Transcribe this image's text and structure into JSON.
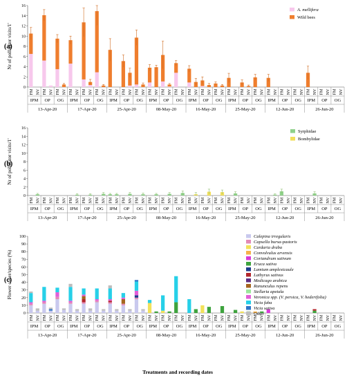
{
  "figure": {
    "xlabel": "Treatments and recording dates"
  },
  "chart_data": [
    {
      "panel": "(a)",
      "type": "bar",
      "stacked": true,
      "ylabel": "Nr of pollinator visits/1'",
      "ylim": [
        0,
        16
      ],
      "yticks": [
        0,
        2,
        4,
        6,
        8,
        10,
        12,
        14,
        16
      ],
      "legend_position": "top-right",
      "series": [
        {
          "name": "A. mellifera",
          "italic": true,
          "color": "#f7c8ec",
          "values": [
            6.5,
            0,
            5.2,
            0.3,
            3.5,
            0,
            4.6,
            0,
            1.5,
            0.4,
            2.9,
            0,
            0,
            0,
            0,
            0.3,
            0.5,
            0,
            0.9,
            0,
            1.1,
            0.1,
            2.8,
            0,
            0.9,
            0,
            0.2,
            0,
            0,
            0,
            0,
            0,
            0,
            0,
            0,
            0,
            0,
            0,
            0,
            0,
            0,
            0,
            0,
            0,
            0,
            0,
            0,
            0
          ]
        },
        {
          "name": "Wild bees",
          "italic": false,
          "color": "#ef7e2e",
          "values": [
            4,
            0,
            8.9,
            0,
            6,
            0.5,
            4.6,
            0,
            11.2,
            0.6,
            12,
            0.3,
            7.3,
            0,
            5.1,
            2.5,
            9.2,
            0.5,
            2.9,
            3.9,
            5.2,
            0.4,
            1.9,
            0,
            2.7,
            1,
            1.1,
            0.4,
            0.7,
            0.3,
            1.8,
            0,
            0.9,
            0.2,
            1.9,
            0,
            1.8,
            0,
            0,
            0,
            0,
            0,
            2.8,
            0,
            0,
            0,
            0,
            0
          ]
        }
      ],
      "errors": [
        1.2,
        0,
        1.1,
        0,
        0.8,
        0.2,
        0.8,
        0,
        2.8,
        0.5,
        2.8,
        0.2,
        2.2,
        0,
        1.2,
        0.9,
        1.5,
        0.3,
        0.6,
        0.4,
        2.7,
        0.2,
        0.5,
        0,
        0.6,
        0.7,
        0.7,
        0.3,
        0.3,
        0.2,
        0.9,
        0,
        0.5,
        0.2,
        0.6,
        0,
        0.7,
        0,
        0,
        0,
        0,
        0,
        1.3,
        0,
        0,
        0,
        0,
        0
      ]
    },
    {
      "panel": "(b)",
      "type": "bar",
      "stacked": true,
      "ylabel": "Nr of pollinator visits/1'",
      "ylim": [
        0,
        16
      ],
      "yticks": [
        0,
        2,
        4,
        6,
        8,
        10,
        12,
        14,
        16
      ],
      "legend_position": "top-right",
      "series": [
        {
          "name": "Syrphidae",
          "italic": false,
          "color": "#8fd18b",
          "values": [
            0,
            0.3,
            0,
            0,
            0,
            0,
            0,
            0.2,
            0,
            0.2,
            0,
            0.4,
            0.3,
            0.3,
            0,
            0.4,
            0,
            0.3,
            0,
            0.3,
            0,
            0.4,
            0,
            0.6,
            0,
            0,
            0,
            0,
            0,
            0,
            0,
            0.5,
            0,
            0,
            0,
            0,
            0,
            0.2,
            1,
            0,
            0,
            0,
            0,
            0.5,
            0,
            0,
            0,
            0
          ]
        },
        {
          "name": "Bombylidae",
          "italic": false,
          "color": "#f2df5c",
          "values": [
            0,
            0,
            0,
            0,
            0,
            0,
            0,
            0,
            0,
            0,
            0,
            0,
            0,
            0,
            0,
            0,
            0,
            0,
            0,
            0,
            0,
            0,
            0,
            0,
            0,
            0.3,
            0,
            0.9,
            0,
            0.8,
            0,
            0,
            0,
            0,
            0,
            0,
            0,
            0,
            0,
            0,
            0,
            0,
            0,
            0,
            0,
            0,
            0,
            0
          ]
        }
      ],
      "errors": [
        0,
        0.2,
        0,
        0,
        0,
        0,
        0,
        0.2,
        0,
        0.2,
        0,
        0.3,
        0.2,
        0.2,
        0,
        0.3,
        0,
        0.3,
        0,
        0.2,
        0,
        0.3,
        0,
        0.5,
        0,
        0.4,
        0,
        0.6,
        0,
        0.5,
        0,
        0.4,
        0,
        0,
        0,
        0,
        0,
        0.2,
        0.5,
        0,
        0,
        0,
        0,
        0.4,
        0,
        0,
        0,
        0
      ]
    },
    {
      "panel": "(c)",
      "type": "bar",
      "stacked": true,
      "ylabel": "Flower cover/species (%)",
      "ylim": [
        0,
        100
      ],
      "yticks": [
        0,
        10,
        20,
        30,
        40,
        50,
        60,
        70,
        80,
        90,
        100
      ],
      "legend_position": "right",
      "series": [
        {
          "name": "Calepina irregularis",
          "italic": true,
          "color": "#c9c9ee",
          "values": [
            10,
            3,
            12,
            3,
            18,
            4,
            12,
            3,
            12,
            3,
            14,
            3,
            12,
            3,
            10,
            3,
            18,
            3,
            0,
            0,
            0,
            0,
            0,
            0,
            0,
            0,
            0,
            0,
            0,
            0,
            0,
            0,
            0,
            0,
            0,
            0,
            0,
            0,
            0,
            0,
            0,
            0,
            0,
            0,
            0,
            0,
            0,
            0
          ]
        },
        {
          "name": "Capsella bursa-pastoris",
          "italic": true,
          "color": "#e28ab7",
          "values": [
            2,
            0,
            2,
            0,
            3,
            0,
            2,
            0,
            2,
            0,
            2,
            0,
            2,
            0,
            2,
            0,
            2,
            0,
            0,
            0,
            0,
            0,
            0,
            0,
            0,
            0,
            0,
            0,
            0,
            0,
            0,
            0,
            0,
            0,
            0,
            0,
            0,
            0,
            0,
            0,
            0,
            0,
            0,
            0,
            0,
            0,
            0,
            0
          ]
        },
        {
          "name": "Cardaria draba",
          "italic": true,
          "color": "#f2e15a",
          "values": [
            0,
            0,
            0,
            0,
            0,
            0,
            0,
            0,
            0,
            0,
            0,
            0,
            0,
            0,
            0,
            0,
            0,
            0,
            13,
            0,
            3,
            0,
            0,
            0,
            0,
            0,
            10,
            0,
            0,
            0,
            0,
            0,
            2,
            0,
            0,
            0,
            0,
            0,
            0,
            0,
            0,
            0,
            0,
            0,
            0,
            0,
            0,
            0
          ]
        },
        {
          "name": "Convolvulus arvensis",
          "italic": true,
          "color": "#f6b24b",
          "values": [
            0,
            0,
            0,
            0,
            0,
            0,
            0,
            0,
            0,
            0,
            0,
            0,
            0,
            0,
            0,
            0,
            0,
            0,
            0,
            0,
            0,
            0,
            0,
            0,
            0,
            0,
            0,
            0,
            0,
            0,
            0,
            0,
            0,
            0,
            2,
            0,
            0,
            0,
            0,
            0,
            0,
            0,
            0,
            0,
            0,
            0,
            0,
            0
          ]
        },
        {
          "name": "Coriandrum sativum",
          "italic": true,
          "color": "#d83ad8",
          "values": [
            0,
            0,
            0,
            0,
            0,
            0,
            0,
            0,
            0,
            0,
            0,
            0,
            0,
            0,
            0,
            0,
            0,
            0,
            0,
            0,
            0,
            0,
            0,
            0,
            0,
            0,
            0,
            0,
            0,
            0,
            0,
            0,
            0,
            0,
            0,
            0,
            5,
            0,
            0,
            0,
            0,
            0,
            0,
            0,
            0,
            0,
            0,
            0
          ]
        },
        {
          "name": "Eruca sativa",
          "italic": true,
          "color": "#3ea33e",
          "values": [
            0,
            0,
            0,
            0,
            0,
            0,
            0,
            0,
            0,
            0,
            0,
            0,
            0,
            0,
            0,
            0,
            0,
            0,
            0,
            2,
            0,
            2,
            14,
            0,
            0,
            5,
            0,
            8,
            0,
            9,
            0,
            4,
            0,
            2,
            0,
            2,
            0,
            0,
            0,
            0,
            0,
            0,
            0,
            3,
            0,
            0,
            0,
            0
          ]
        },
        {
          "name": "Lamium amplexicaule",
          "italic": true,
          "color": "#1f3b8c",
          "values": [
            0,
            0,
            0,
            0,
            0,
            0,
            0,
            0,
            0,
            0,
            0,
            0,
            0,
            0,
            0,
            0,
            3,
            0,
            0,
            0,
            0,
            0,
            0,
            0,
            0,
            0,
            0,
            0,
            0,
            0,
            0,
            0,
            0,
            0,
            0,
            0,
            0,
            0,
            0,
            0,
            0,
            0,
            0,
            0,
            0,
            0,
            0,
            0
          ]
        },
        {
          "name": "Lathyrus sativus",
          "italic": true,
          "color": "#b3262b",
          "values": [
            0,
            0,
            0,
            0,
            0,
            0,
            0,
            0,
            4,
            0,
            0,
            0,
            2,
            0,
            0,
            0,
            0,
            0,
            0,
            0,
            0,
            0,
            0,
            0,
            0,
            0,
            0,
            0,
            0,
            0,
            0,
            0,
            0,
            0,
            0,
            0,
            0,
            0,
            0,
            0,
            0,
            0,
            0,
            2,
            0,
            0,
            0,
            0
          ]
        },
        {
          "name": "Medicago arabica",
          "italic": true,
          "color": "#5d2d84",
          "values": [
            0,
            0,
            0,
            0,
            0,
            0,
            0,
            0,
            0,
            0,
            0,
            0,
            0,
            0,
            0,
            0,
            0,
            0,
            0,
            0,
            0,
            0,
            0,
            0,
            0,
            0,
            0,
            0,
            0,
            0,
            0,
            0,
            0,
            0,
            0,
            0,
            0,
            0,
            0,
            0,
            0,
            0,
            0,
            0,
            0,
            0,
            0,
            0
          ]
        },
        {
          "name": "Ranunculus repens",
          "italic": true,
          "color": "#a5651f",
          "values": [
            0,
            0,
            0,
            0,
            0,
            0,
            0,
            0,
            4,
            0,
            0,
            0,
            0,
            0,
            6,
            0,
            0,
            0,
            0,
            0,
            0,
            0,
            0,
            0,
            0,
            0,
            0,
            0,
            0,
            0,
            0,
            0,
            0,
            0,
            0,
            0,
            0,
            0,
            0,
            0,
            0,
            0,
            0,
            0,
            0,
            0,
            0,
            0
          ]
        },
        {
          "name": "Stellaria apetala",
          "italic": true,
          "color": "#9be79b",
          "values": [
            0,
            0,
            0,
            0,
            0,
            0,
            0,
            0,
            0,
            0,
            0,
            0,
            0,
            0,
            0,
            0,
            0,
            0,
            0,
            0,
            0,
            0,
            0,
            0,
            0,
            0,
            0,
            0,
            0,
            0,
            0,
            0,
            0,
            0,
            0,
            0,
            0,
            0,
            0,
            0,
            0,
            0,
            0,
            0,
            0,
            0,
            0,
            0
          ]
        },
        {
          "name": "Veronica spp. (V. persica, V. hederifolia)",
          "italic": true,
          "color": "#e25ed8",
          "values": [
            2,
            0,
            2,
            0,
            6,
            0,
            2,
            0,
            2,
            0,
            2,
            0,
            2,
            0,
            2,
            0,
            6,
            0,
            0,
            0,
            0,
            0,
            0,
            0,
            0,
            0,
            0,
            0,
            0,
            0,
            0,
            0,
            0,
            0,
            0,
            0,
            0,
            0,
            0,
            0,
            0,
            0,
            0,
            0,
            0,
            0,
            0,
            0
          ]
        },
        {
          "name": "Vicia faba",
          "italic": true,
          "color": "#27d0e8",
          "values": [
            12,
            0,
            18,
            0,
            6,
            0,
            18,
            0,
            8,
            0,
            14,
            0,
            14,
            0,
            6,
            0,
            12,
            0,
            4,
            0,
            20,
            0,
            34,
            0,
            18,
            0,
            0,
            0,
            0,
            0,
            0,
            0,
            0,
            0,
            0,
            0,
            0,
            0,
            0,
            0,
            0,
            0,
            0,
            0,
            0,
            0,
            0,
            0
          ]
        },
        {
          "name": "Vicia sativa",
          "italic": true,
          "color": "#2f74c7",
          "values": [
            0,
            0,
            0,
            2,
            0,
            0,
            0,
            0,
            0,
            0,
            0,
            0,
            0,
            0,
            0,
            0,
            2,
            0,
            0,
            0,
            0,
            0,
            0,
            0,
            0,
            0,
            0,
            0,
            0,
            0,
            0,
            0,
            0,
            0,
            0,
            0,
            0,
            0,
            0,
            0,
            0,
            0,
            0,
            0,
            0,
            0,
            0,
            0
          ]
        },
        {
          "name": "Other",
          "italic": false,
          "color": "#bdbdbd",
          "values": [
            2,
            3,
            0,
            2,
            0,
            2,
            4,
            2,
            0,
            3,
            0,
            2,
            4,
            2,
            0,
            2,
            0,
            2,
            0,
            0,
            0,
            0,
            0,
            0,
            0,
            0,
            0,
            0,
            0,
            0,
            0,
            0,
            0,
            0,
            0,
            0,
            0,
            0,
            0,
            0,
            0,
            0,
            0,
            0,
            0,
            0,
            0,
            0
          ]
        }
      ]
    }
  ],
  "x_axis": {
    "bar_labels": [
      "FM",
      "NV"
    ],
    "treatments": [
      "IPM",
      "OP",
      "OG"
    ],
    "dates": [
      "13-Apr-20",
      "17-Apr-20",
      "25-Apr-20",
      "08-May-20",
      "16-May-20",
      "25-May-20",
      "12-Jun-20",
      "26-Jun-20"
    ]
  }
}
